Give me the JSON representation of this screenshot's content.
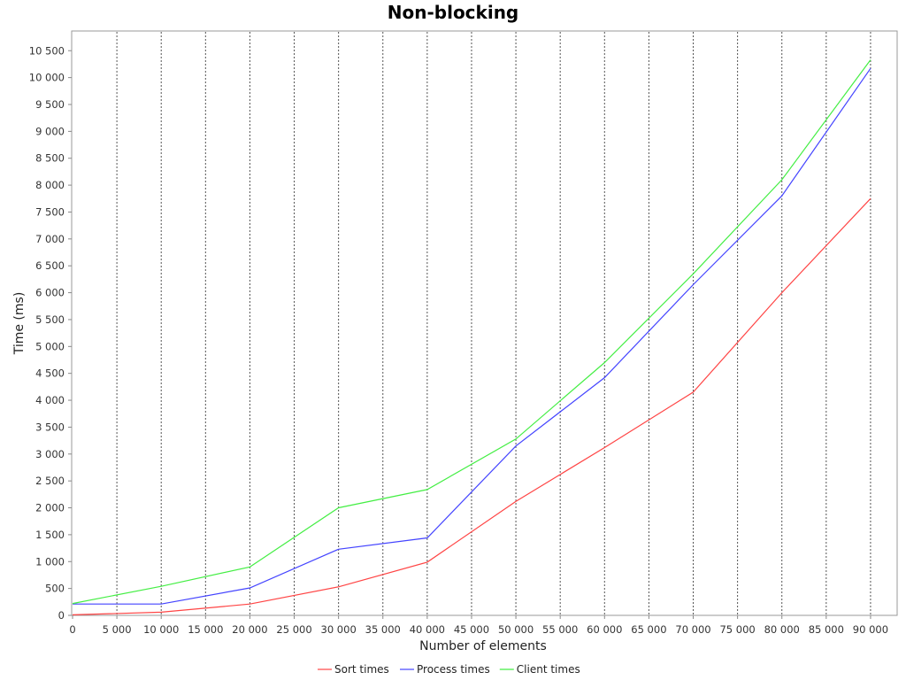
{
  "chart_data": {
    "type": "line",
    "title": "Non-blocking",
    "xlabel": "Number of elements",
    "ylabel": "Time (ms)",
    "xlim": [
      0,
      93000
    ],
    "ylim": [
      0,
      10850
    ],
    "x_ticks": [
      0,
      5000,
      10000,
      15000,
      20000,
      25000,
      30000,
      35000,
      40000,
      45000,
      50000,
      55000,
      60000,
      65000,
      70000,
      75000,
      80000,
      85000,
      90000
    ],
    "x_tick_labels": [
      "0",
      "5 000",
      "10 000",
      "15 000",
      "20 000",
      "25 000",
      "30 000",
      "35 000",
      "40 000",
      "45 000",
      "50 000",
      "55 000",
      "60 000",
      "65 000",
      "70 000",
      "75 000",
      "80 000",
      "85 000",
      "90 000"
    ],
    "y_ticks": [
      0,
      500,
      1000,
      1500,
      2000,
      2500,
      3000,
      3500,
      4000,
      4500,
      5000,
      5500,
      6000,
      6500,
      7000,
      7500,
      8000,
      8500,
      9000,
      9500,
      10000,
      10500
    ],
    "y_tick_labels": [
      "0",
      "500",
      "1 000",
      "1 500",
      "2 000",
      "2 500",
      "3 000",
      "3 500",
      "4 000",
      "4 500",
      "5 000",
      "5 500",
      "6 000",
      "6 500",
      "7 000",
      "7 500",
      "8 000",
      "8 500",
      "9 000",
      "9 500",
      "10 000",
      "10 500"
    ],
    "grid": "vertical dashed",
    "legend_position": "bottom",
    "x": [
      0,
      10000,
      20000,
      30000,
      40000,
      50000,
      60000,
      70000,
      80000,
      90000
    ],
    "series": [
      {
        "name": "Sort times",
        "color": "#ff4444",
        "values": [
          10,
          60,
          210,
          530,
          990,
          2120,
          3120,
          4150,
          6000,
          7750
        ]
      },
      {
        "name": "Process times",
        "color": "#4444ff",
        "values": [
          210,
          210,
          510,
          1230,
          1440,
          3150,
          4420,
          6150,
          7800,
          10170
        ]
      },
      {
        "name": "Client times",
        "color": "#44ee44",
        "values": [
          220,
          540,
          900,
          2000,
          2340,
          3280,
          4700,
          6350,
          8100,
          10330
        ]
      }
    ]
  }
}
